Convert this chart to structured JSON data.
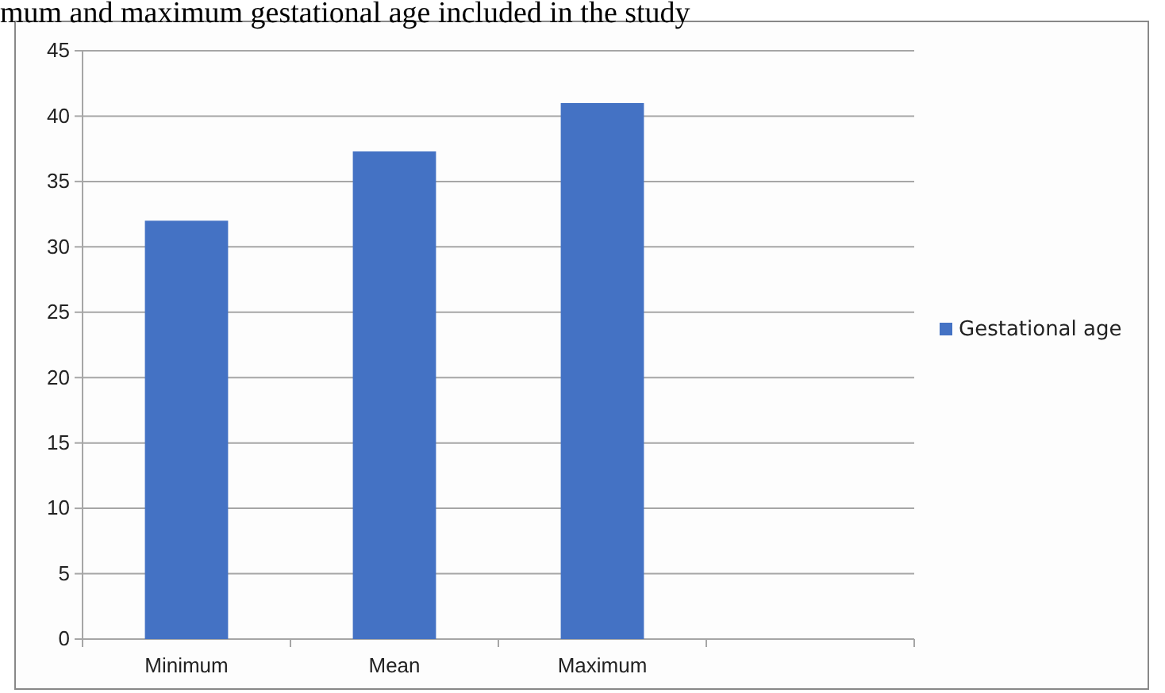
{
  "chart_data": {
    "type": "bar",
    "title": "mum and maximum gestational age included in the study",
    "categories": [
      "Minimum",
      "Mean",
      "Maximum",
      null
    ],
    "series": [
      {
        "name": "Gestational age",
        "color": "#4472c4",
        "values": [
          32,
          37.3,
          41,
          null
        ]
      }
    ],
    "ylim": [
      0,
      45
    ],
    "yticks": [
      0,
      5,
      10,
      15,
      20,
      25,
      30,
      35,
      40,
      45
    ],
    "grid": "y",
    "legend": "right"
  }
}
